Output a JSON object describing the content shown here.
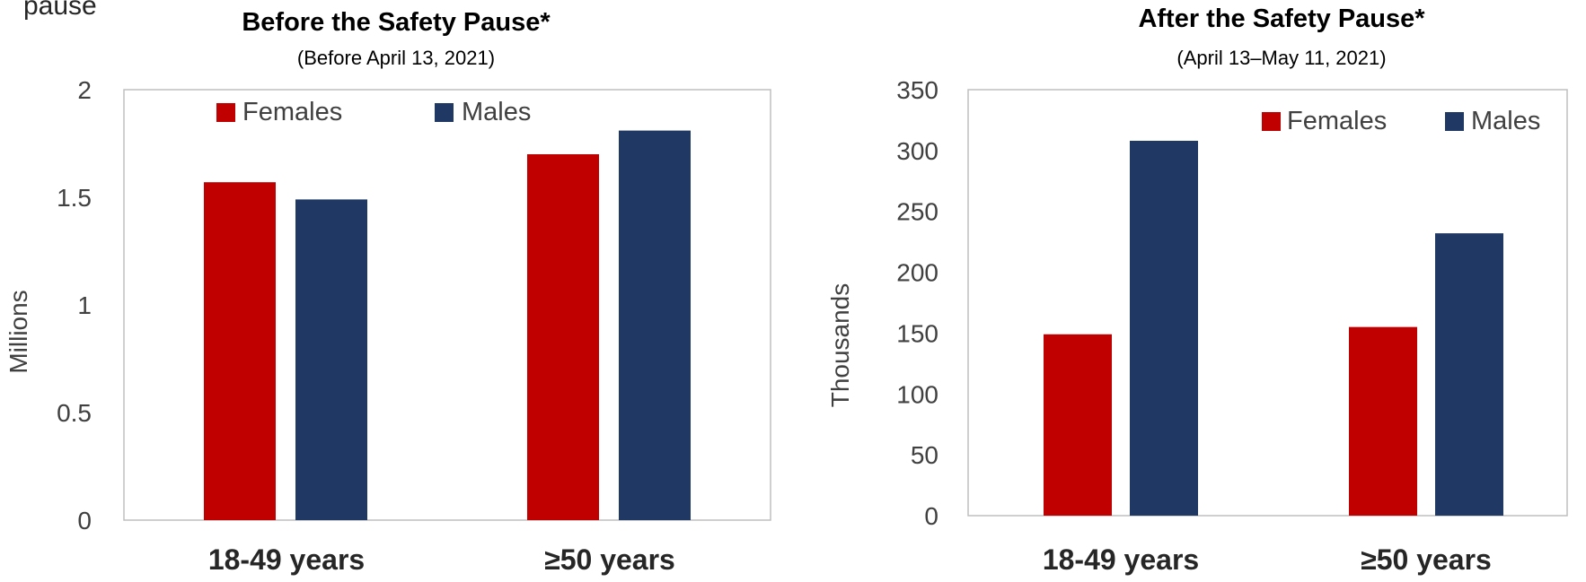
{
  "top_fragment": "pause",
  "chart_data": [
    {
      "type": "bar",
      "title": "Before the Safety Pause*",
      "subtitle": "(Before April 13, 2021)",
      "xlabel": "",
      "ylabel": "Millions",
      "categories": [
        "18-49 years",
        "≥50 years"
      ],
      "ylim": [
        0,
        2
      ],
      "yticks": [
        0,
        0.5,
        1,
        1.5,
        2
      ],
      "ytick_labels": [
        "0",
        "0.5",
        "1",
        "1.5",
        "2"
      ],
      "grid": false,
      "legend_position": "top",
      "colors": [
        "#c00000",
        "#203864"
      ],
      "series": [
        {
          "name": "Females",
          "values": [
            1.57,
            1.7
          ]
        },
        {
          "name": "Males",
          "values": [
            1.49,
            1.81
          ]
        }
      ]
    },
    {
      "type": "bar",
      "title": "After the Safety Pause*",
      "subtitle": "(April 13–May 11, 2021)",
      "xlabel": "",
      "ylabel": "Thousands",
      "categories": [
        "18-49 years",
        "≥50 years"
      ],
      "ylim": [
        0,
        350
      ],
      "yticks": [
        0,
        50,
        100,
        150,
        200,
        250,
        300,
        350
      ],
      "ytick_labels": [
        "0",
        "50",
        "100",
        "150",
        "200",
        "250",
        "300",
        "350"
      ],
      "grid": false,
      "legend_position": "top-right",
      "colors": [
        "#c00000",
        "#203864"
      ],
      "series": [
        {
          "name": "Females",
          "values": [
            149,
            155
          ]
        },
        {
          "name": "Males",
          "values": [
            308,
            232
          ]
        }
      ]
    }
  ]
}
